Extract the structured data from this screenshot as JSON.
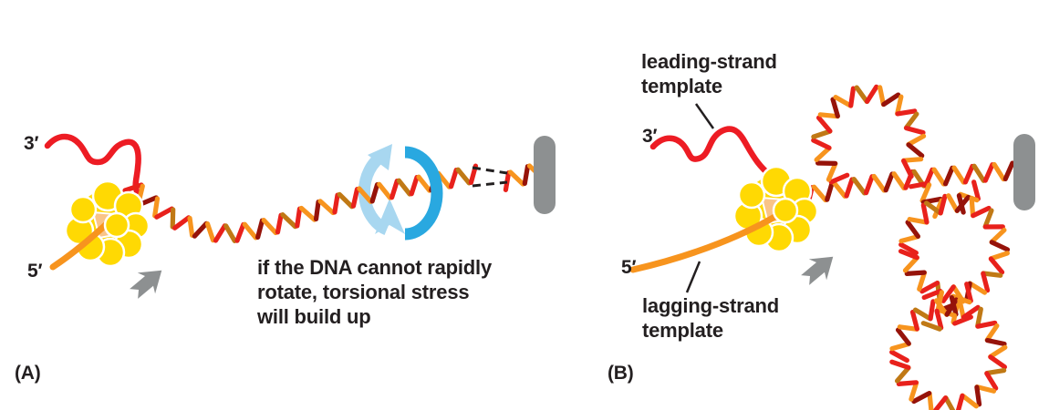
{
  "figure": {
    "panel_a": {
      "panel_label": "(A)",
      "three_prime_label": "3′",
      "five_prime_label": "5′",
      "caption": "if the DNA cannot rapidly\nrotate, torsional stress\nwill build up"
    },
    "panel_b": {
      "panel_label": "(B)",
      "three_prime_label": "3′",
      "five_prime_label": "5′",
      "leading_strand_label": "leading-strand\ntemplate",
      "lagging_strand_label": "lagging-strand\ntemplate"
    },
    "icons": {
      "rotation_icon": "circular-rotation-arrow",
      "fork_direction_icon": "chunky-arrow-up-right",
      "anchor_icon": "rounded-capsule-bar",
      "break_icon": "dashed-continuation-lines"
    }
  },
  "colors": {
    "dna_red": "#e8211c",
    "dna_dark_red": "#96130a",
    "dna_orange": "#f7941e",
    "dna_dark_orange": "#c07915",
    "strand_red": "#ed1c24",
    "strand_orange": "#f7941e",
    "protein_yellow": "#ffd903",
    "protein_peach": "#f9c488",
    "gray": "#8d9091",
    "rotation_blue": "#29a8e0",
    "rotation_light_blue": "#a8d7f0",
    "ink": "#231f20"
  }
}
